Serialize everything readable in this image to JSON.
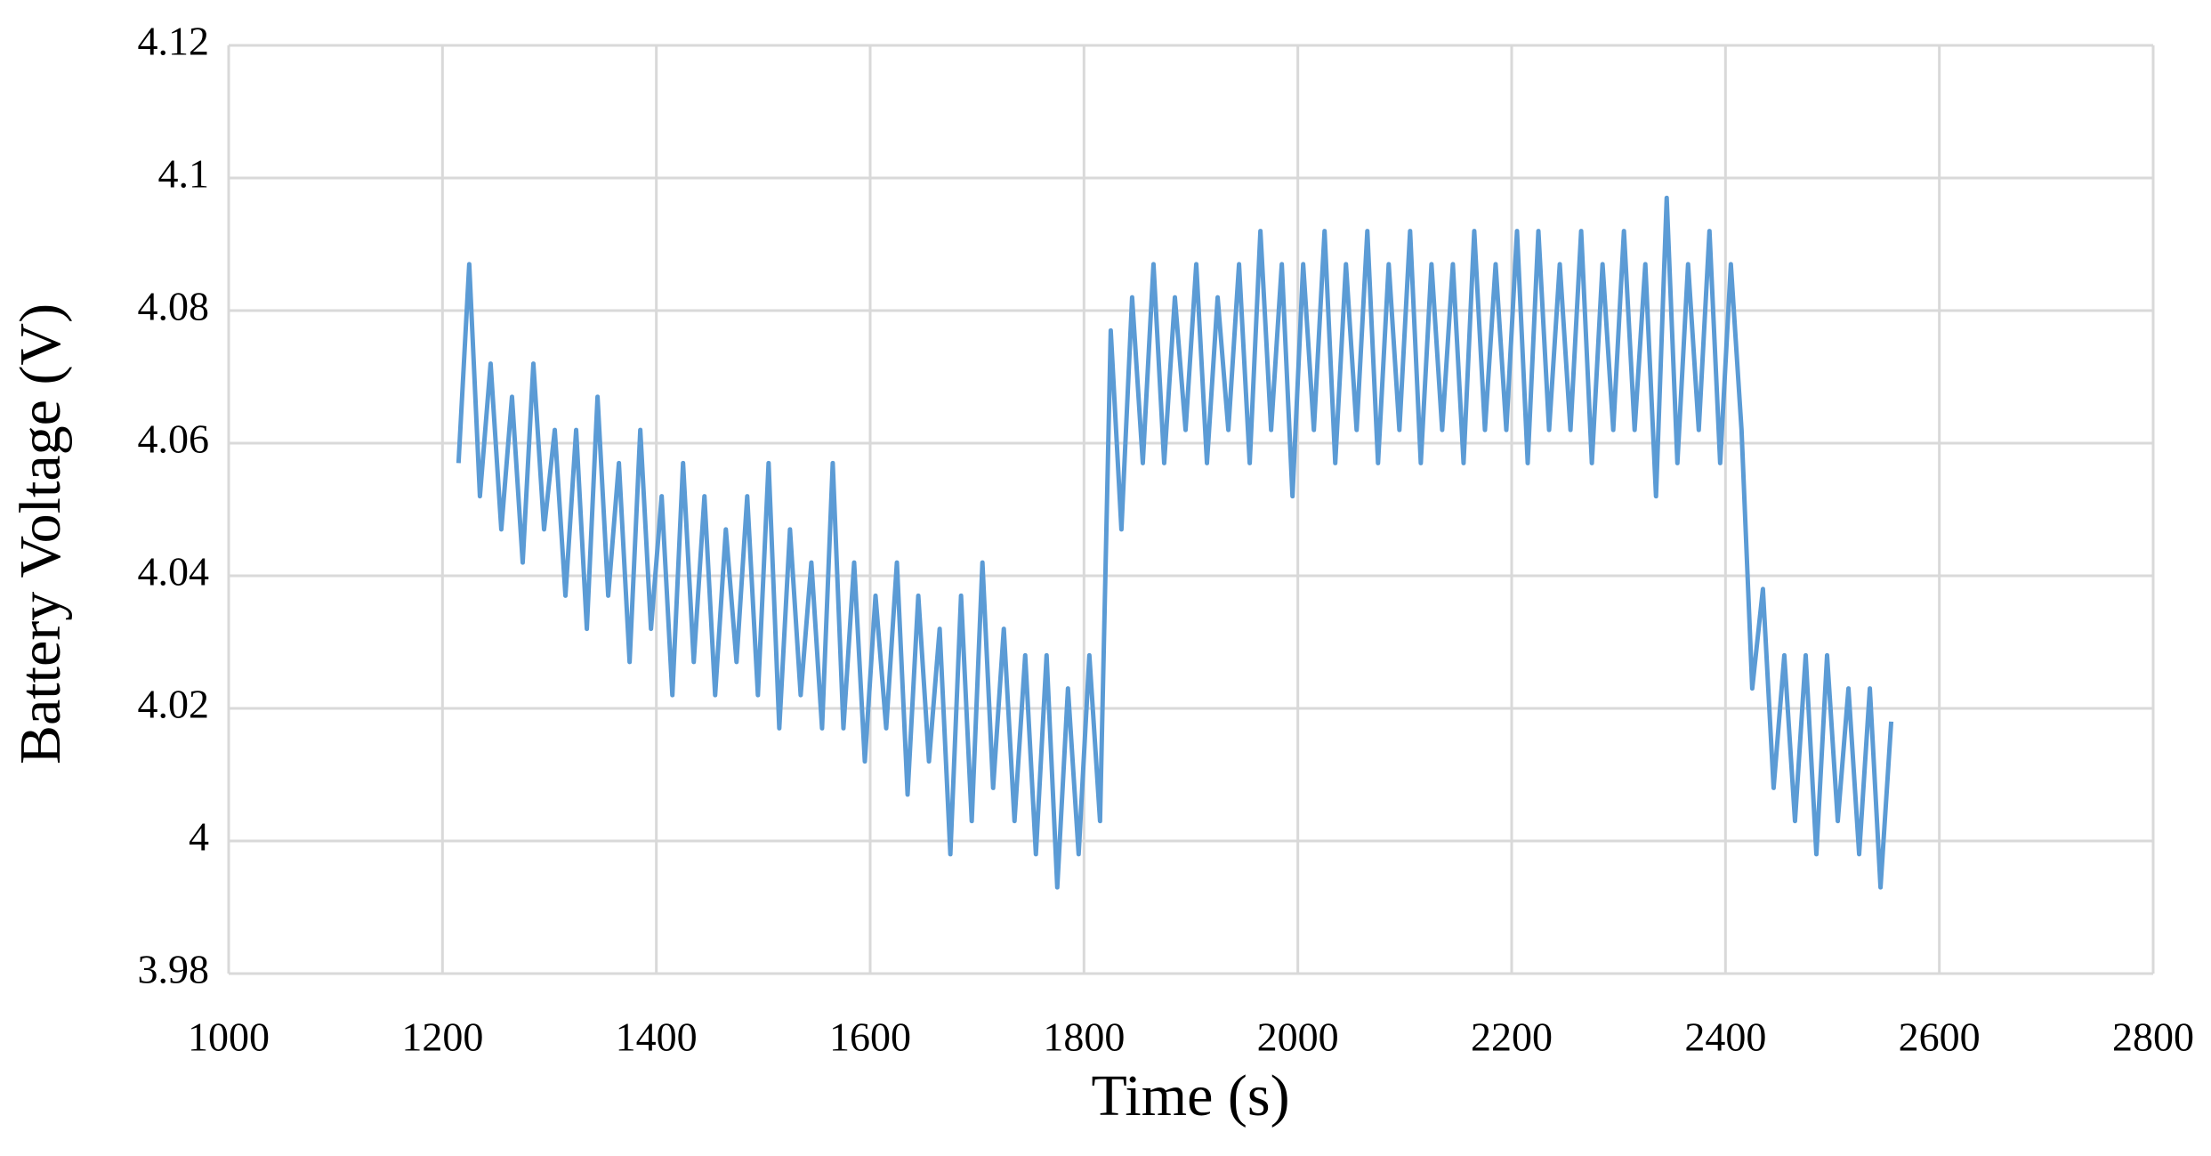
{
  "chart_data": {
    "type": "line",
    "x_label": "Time (s)",
    "y_label": "Battery Voltage (V)",
    "color": "#5b9bd5",
    "grid": true,
    "xlim": [
      1000,
      2800
    ],
    "xticks": [
      1000,
      1200,
      1400,
      1600,
      1800,
      2000,
      2200,
      2400,
      2600,
      2800
    ],
    "ylim": [
      3.98,
      4.12
    ],
    "yticks": [
      3.98,
      4,
      4.02,
      4.04,
      4.06,
      4.08,
      4.1,
      4.12
    ],
    "x": [
      1215,
      1225,
      1235,
      1245,
      1255,
      1265,
      1275,
      1285,
      1295,
      1305,
      1315,
      1325,
      1335,
      1345,
      1355,
      1365,
      1375,
      1385,
      1395,
      1405,
      1415,
      1425,
      1435,
      1445,
      1455,
      1465,
      1475,
      1485,
      1495,
      1505,
      1515,
      1525,
      1535,
      1545,
      1555,
      1565,
      1575,
      1585,
      1595,
      1605,
      1615,
      1625,
      1635,
      1645,
      1655,
      1665,
      1675,
      1685,
      1695,
      1705,
      1715,
      1725,
      1735,
      1745,
      1755,
      1765,
      1775,
      1785,
      1795,
      1805,
      1815,
      1825,
      1835,
      1845,
      1855,
      1865,
      1875,
      1885,
      1895,
      1905,
      1915,
      1925,
      1935,
      1945,
      1955,
      1965,
      1975,
      1985,
      1995,
      2005,
      2015,
      2025,
      2035,
      2045,
      2055,
      2065,
      2075,
      2085,
      2095,
      2105,
      2115,
      2125,
      2135,
      2145,
      2155,
      2165,
      2175,
      2185,
      2195,
      2205,
      2215,
      2225,
      2235,
      2245,
      2255,
      2265,
      2275,
      2285,
      2295,
      2305,
      2315,
      2325,
      2335,
      2345,
      2355,
      2365,
      2375,
      2385,
      2395,
      2405,
      2415,
      2425,
      2435,
      2445,
      2455,
      2465,
      2475,
      2485,
      2495,
      2505,
      2515,
      2525,
      2535,
      2545,
      2555
    ],
    "values": [
      4.057,
      4.087,
      4.052,
      4.072,
      4.047,
      4.067,
      4.042,
      4.072,
      4.047,
      4.062,
      4.037,
      4.062,
      4.032,
      4.067,
      4.037,
      4.057,
      4.027,
      4.062,
      4.032,
      4.052,
      4.022,
      4.057,
      4.027,
      4.052,
      4.022,
      4.047,
      4.027,
      4.052,
      4.022,
      4.057,
      4.017,
      4.047,
      4.022,
      4.042,
      4.017,
      4.057,
      4.017,
      4.042,
      4.012,
      4.037,
      4.017,
      4.042,
      4.007,
      4.037,
      4.012,
      4.032,
      3.998,
      4.037,
      4.003,
      4.042,
      4.008,
      4.032,
      4.003,
      4.028,
      3.998,
      4.028,
      3.993,
      4.023,
      3.998,
      4.028,
      4.003,
      4.077,
      4.047,
      4.082,
      4.057,
      4.087,
      4.057,
      4.082,
      4.062,
      4.087,
      4.057,
      4.082,
      4.062,
      4.087,
      4.057,
      4.092,
      4.062,
      4.087,
      4.052,
      4.087,
      4.062,
      4.092,
      4.057,
      4.087,
      4.062,
      4.092,
      4.057,
      4.087,
      4.062,
      4.092,
      4.057,
      4.087,
      4.062,
      4.087,
      4.057,
      4.092,
      4.062,
      4.087,
      4.062,
      4.092,
      4.057,
      4.092,
      4.062,
      4.087,
      4.062,
      4.092,
      4.057,
      4.087,
      4.062,
      4.092,
      4.062,
      4.087,
      4.052,
      4.097,
      4.057,
      4.087,
      4.062,
      4.092,
      4.057,
      4.087,
      4.062,
      4.023,
      4.038,
      4.008,
      4.028,
      4.003,
      4.028,
      3.998,
      4.028,
      4.003,
      4.023,
      3.998,
      4.023,
      3.993,
      4.018
    ]
  }
}
